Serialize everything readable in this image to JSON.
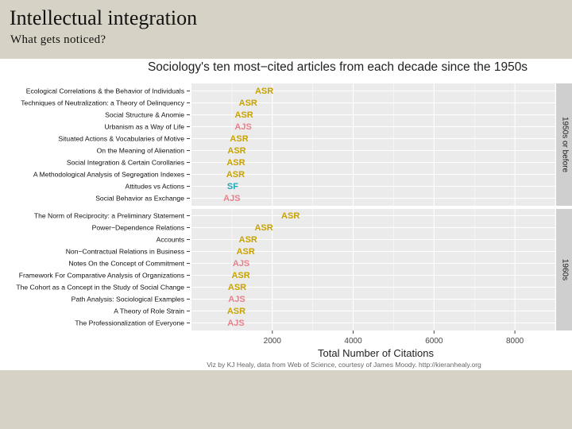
{
  "slide": {
    "title": "Intellectual integration",
    "subtitle": "What gets noticed?"
  },
  "colors": {
    "ASR": "#c9a200",
    "AJS": "#e87f8a",
    "SF": "#1fa8b5",
    "panel_bg": "#ebebeb",
    "strip_bg": "#cfcfcf",
    "slide_bg": "#d6d3c6"
  },
  "chart_data": {
    "type": "scatter",
    "title": "Sociology's ten most−cited articles from each decade since the 1950s",
    "xlabel": "Total Number of Citations",
    "ylabel": "",
    "xlim": [
      0,
      9000
    ],
    "xticks": [
      2000,
      4000,
      6000,
      8000
    ],
    "caption": "Viz by KJ Healy, data from Web of Science, courtesy of James Moody. http://kieranhealy.org",
    "facets": [
      {
        "label": "1950s or before",
        "items": [
          {
            "title": "Ecological Correlations & the Behavior of Individuals",
            "journal": "ASR",
            "citations": 1800
          },
          {
            "title": "Techniques of Neutralization: a Theory of Delinquency",
            "journal": "ASR",
            "citations": 1400
          },
          {
            "title": "Social Structure & Anomie",
            "journal": "ASR",
            "citations": 1300
          },
          {
            "title": "Urbanism as a Way of Life",
            "journal": "AJS",
            "citations": 1280
          },
          {
            "title": "Situated Actions & Vocabularies of Motive",
            "journal": "ASR",
            "citations": 1180
          },
          {
            "title": "On the Meaning of Alienation",
            "journal": "ASR",
            "citations": 1120
          },
          {
            "title": "Social Integration & Certain Corollaries",
            "journal": "ASR",
            "citations": 1100
          },
          {
            "title": "A Methodological Analysis of Segregation Indexes",
            "journal": "ASR",
            "citations": 1090
          },
          {
            "title": "Attitudes vs Actions",
            "journal": "SF",
            "citations": 1020
          },
          {
            "title": "Social Behavior as Exchange",
            "journal": "AJS",
            "citations": 1000
          }
        ]
      },
      {
        "label": "1960s",
        "items": [
          {
            "title": "The Norm of Reciprocity: a Preliminary Statement",
            "journal": "ASR",
            "citations": 2450
          },
          {
            "title": "Power−Dependence Relations",
            "journal": "ASR",
            "citations": 1790
          },
          {
            "title": "Accounts",
            "journal": "ASR",
            "citations": 1400
          },
          {
            "title": "Non−Contractual Relations in Business",
            "journal": "ASR",
            "citations": 1340
          },
          {
            "title": "Notes On the Concept of Commitment",
            "journal": "AJS",
            "citations": 1230
          },
          {
            "title": "Framework For Comparative Analysis of Organizations",
            "journal": "ASR",
            "citations": 1220
          },
          {
            "title": "The Cohort as a Concept in the Study of Social Change",
            "journal": "ASR",
            "citations": 1130
          },
          {
            "title": "Path Analysis: Sociological Examples",
            "journal": "AJS",
            "citations": 1120
          },
          {
            "title": "A Theory of Role Strain",
            "journal": "ASR",
            "citations": 1110
          },
          {
            "title": "The Professionalization of Everyone",
            "journal": "AJS",
            "citations": 1100
          }
        ]
      }
    ]
  }
}
